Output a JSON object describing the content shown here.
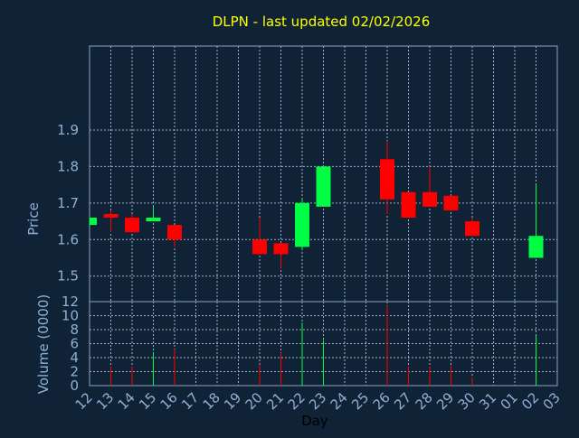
{
  "title": "DLPN - last updated 02/02/2026",
  "colors": {
    "background": "#0f2236",
    "plot_border": "#8aa4c0",
    "grid": "#9bb0c8",
    "axis_text": "#8fb0d6",
    "title": "#ffff00",
    "up": "#00ff44",
    "down": "#ff0000",
    "xlabel": "#000000"
  },
  "chart_data": [
    {
      "type": "candlestick",
      "ylabel": "Price",
      "ylim": [
        1.43,
        2.13
      ],
      "yticks": [
        "1.5",
        "1.6",
        "1.7",
        "1.8",
        "1.9"
      ],
      "grid": true,
      "candles": [
        {
          "x": 0,
          "open": 1.64,
          "close": 1.66,
          "high": 1.66,
          "low": 1.64
        },
        {
          "x": 1,
          "open": 1.67,
          "close": 1.66,
          "high": 1.68,
          "low": 1.62
        },
        {
          "x": 2,
          "open": 1.66,
          "close": 1.62,
          "high": 1.67,
          "low": 1.62
        },
        {
          "x": 3,
          "open": 1.65,
          "close": 1.66,
          "high": 1.69,
          "low": 1.65
        },
        {
          "x": 4,
          "open": 1.64,
          "close": 1.6,
          "high": 1.64,
          "low": 1.58
        },
        {
          "x": 8,
          "open": 1.6,
          "close": 1.56,
          "high": 1.66,
          "low": 1.56
        },
        {
          "x": 9,
          "open": 1.59,
          "close": 1.56,
          "high": 1.59,
          "low": 1.52
        },
        {
          "x": 10,
          "open": 1.58,
          "close": 1.7,
          "high": 1.71,
          "low": 1.57
        },
        {
          "x": 11,
          "open": 1.69,
          "close": 1.8,
          "high": 1.8,
          "low": 1.69
        },
        {
          "x": 14,
          "open": 1.82,
          "close": 1.71,
          "high": 1.87,
          "low": 1.67
        },
        {
          "x": 15,
          "open": 1.73,
          "close": 1.66,
          "high": 1.73,
          "low": 1.66
        },
        {
          "x": 16,
          "open": 1.73,
          "close": 1.69,
          "high": 1.8,
          "low": 1.69
        },
        {
          "x": 17,
          "open": 1.72,
          "close": 1.68,
          "high": 1.72,
          "low": 1.68
        },
        {
          "x": 18,
          "open": 1.65,
          "close": 1.61,
          "high": 1.66,
          "low": 1.61
        },
        {
          "x": 21,
          "open": 1.55,
          "close": 1.61,
          "high": 1.75,
          "low": 1.55
        }
      ]
    },
    {
      "type": "bar",
      "ylabel": "Volume (0000)",
      "ylim": [
        0,
        12
      ],
      "yticks": [
        "0",
        "2",
        "4",
        "6",
        "8",
        "10",
        "12"
      ],
      "xlabel": "Day",
      "grid": true,
      "bars": [
        {
          "x": 1,
          "value": 2.7,
          "dir": "down"
        },
        {
          "x": 2,
          "value": 2.7,
          "dir": "down"
        },
        {
          "x": 3,
          "value": 4.8,
          "dir": "up"
        },
        {
          "x": 4,
          "value": 5.2,
          "dir": "down"
        },
        {
          "x": 8,
          "value": 3.0,
          "dir": "down"
        },
        {
          "x": 9,
          "value": 4.7,
          "dir": "down"
        },
        {
          "x": 10,
          "value": 9.0,
          "dir": "up"
        },
        {
          "x": 11,
          "value": 6.5,
          "dir": "up"
        },
        {
          "x": 14,
          "value": 11.4,
          "dir": "down"
        },
        {
          "x": 15,
          "value": 2.7,
          "dir": "down"
        },
        {
          "x": 16,
          "value": 2.7,
          "dir": "down"
        },
        {
          "x": 17,
          "value": 2.9,
          "dir": "down"
        },
        {
          "x": 18,
          "value": 1.2,
          "dir": "down"
        },
        {
          "x": 21,
          "value": 7.1,
          "dir": "up"
        }
      ]
    }
  ],
  "x_ticks": [
    "12",
    "13",
    "14",
    "15",
    "16",
    "17",
    "18",
    "19",
    "20",
    "21",
    "22",
    "23",
    "24",
    "25",
    "26",
    "27",
    "28",
    "29",
    "30",
    "31",
    "01",
    "02",
    "03"
  ]
}
